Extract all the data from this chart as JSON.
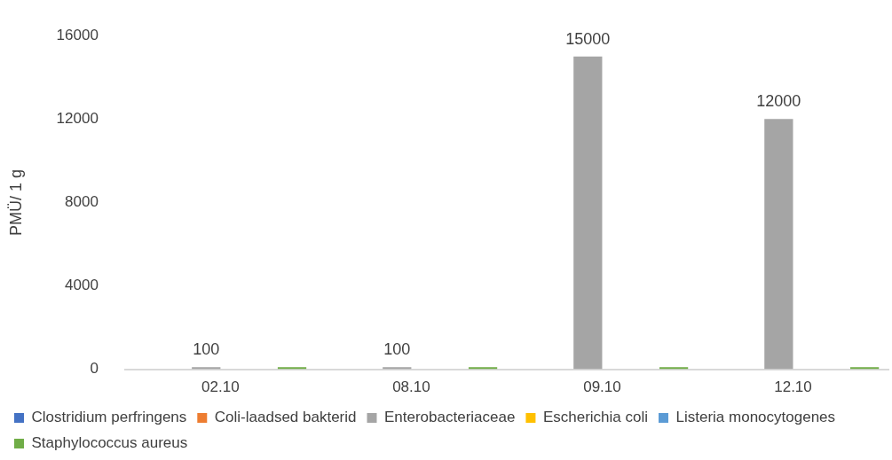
{
  "chart_data": {
    "type": "bar",
    "ylabel": "PMÜ/ 1 g",
    "categories": [
      "02.10",
      "08.10",
      "09.10",
      "12.10"
    ],
    "series": [
      {
        "name": "Clostridium perfringens",
        "color": "#4472c4",
        "values": [
          null,
          null,
          null,
          null
        ]
      },
      {
        "name": "Coli-laadsed bakterid",
        "color": "#ed7d31",
        "values": [
          null,
          null,
          null,
          null
        ]
      },
      {
        "name": "Enterobacteriaceae",
        "color": "#a5a5a5",
        "values": [
          100,
          100,
          15000,
          12000
        ],
        "value_labels": [
          "100",
          "100",
          "15000",
          "12000"
        ]
      },
      {
        "name": "Escherichia coli",
        "color": "#ffc000",
        "values": [
          null,
          null,
          null,
          null
        ]
      },
      {
        "name": "Listeria monocytogenes",
        "color": "#5b9bd5",
        "values": [
          null,
          null,
          null,
          null
        ]
      },
      {
        "name": "Staphylococcus aureus",
        "color": "#70ad47",
        "values": [
          100,
          100,
          100,
          100
        ]
      }
    ],
    "ylim": [
      0,
      16000
    ],
    "yticks": [
      0,
      4000,
      8000,
      12000,
      16000
    ],
    "grid": false,
    "legend": "bottom"
  }
}
